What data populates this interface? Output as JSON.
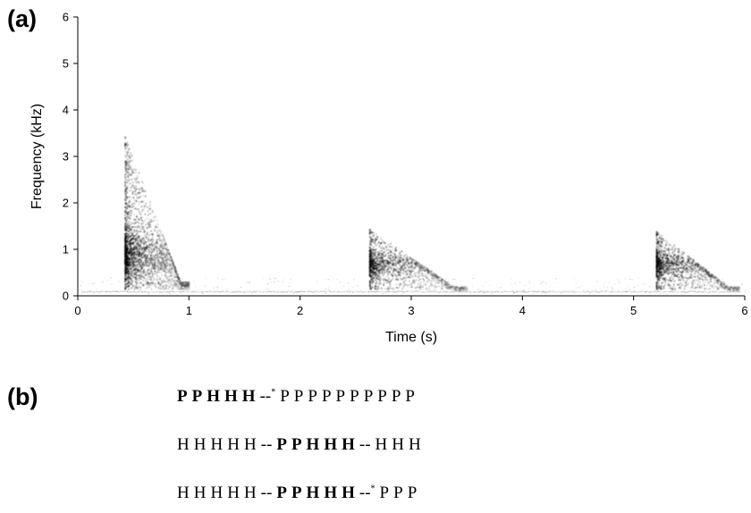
{
  "panel_a_label": "(a)",
  "panel_b_label": "(b)",
  "chart_data": {
    "type": "heatmap",
    "subtype": "spectrogram",
    "xlabel": "Time (s)",
    "ylabel": "Frequency (kHz)",
    "xlim": [
      0,
      6
    ],
    "ylim": [
      0,
      6
    ],
    "xticks": [
      "0",
      "1",
      "2",
      "3",
      "4",
      "5",
      "6"
    ],
    "yticks": [
      "0",
      "1",
      "2",
      "3",
      "4",
      "5",
      "6"
    ],
    "grid": false,
    "colormap": "grayscale",
    "notes_visible": [
      {
        "start_s": 0.42,
        "end_s": 1.0,
        "fmin_khz": 0.15,
        "fmax_khz": 3.45,
        "peak_khz": 0.9
      },
      {
        "start_s": 2.62,
        "end_s": 3.5,
        "fmin_khz": 0.15,
        "fmax_khz": 1.45,
        "peak_khz": 0.7
      },
      {
        "start_s": 5.2,
        "end_s": 5.95,
        "fmin_khz": 0.15,
        "fmax_khz": 1.4,
        "peak_khz": 0.7
      }
    ],
    "baseline_noise_khz": 0.1
  },
  "sequences": [
    {
      "tokens": [
        {
          "text": "P",
          "bold": true
        },
        {
          "text": "P",
          "bold": true
        },
        {
          "text": "H",
          "bold": true
        },
        {
          "text": "H",
          "bold": true
        },
        {
          "text": "H",
          "bold": true
        },
        {
          "text": "--",
          "sep": true,
          "mark": "*"
        },
        {
          "text": "P"
        },
        {
          "text": "P"
        },
        {
          "text": "P"
        },
        {
          "text": "P"
        },
        {
          "text": "P"
        },
        {
          "text": "P"
        },
        {
          "text": "P"
        },
        {
          "text": "P"
        },
        {
          "text": "P"
        },
        {
          "text": "P"
        }
      ]
    },
    {
      "tokens": [
        {
          "text": "H"
        },
        {
          "text": "H"
        },
        {
          "text": "H"
        },
        {
          "text": "H"
        },
        {
          "text": "H"
        },
        {
          "text": "--",
          "sep": true
        },
        {
          "text": "P",
          "bold": true
        },
        {
          "text": "P",
          "bold": true
        },
        {
          "text": "H",
          "bold": true
        },
        {
          "text": "H",
          "bold": true
        },
        {
          "text": "H",
          "bold": true
        },
        {
          "text": "--",
          "sep": true
        },
        {
          "text": "H"
        },
        {
          "text": "H"
        },
        {
          "text": "H"
        }
      ]
    },
    {
      "tokens": [
        {
          "text": "H"
        },
        {
          "text": "H"
        },
        {
          "text": "H"
        },
        {
          "text": "H"
        },
        {
          "text": "H"
        },
        {
          "text": "--",
          "sep": true
        },
        {
          "text": "P",
          "bold": true
        },
        {
          "text": "P",
          "bold": true
        },
        {
          "text": "H",
          "bold": true
        },
        {
          "text": "H",
          "bold": true
        },
        {
          "text": "H",
          "bold": true
        },
        {
          "text": "--",
          "sep": true,
          "mark": "*"
        },
        {
          "text": "P"
        },
        {
          "text": "P"
        },
        {
          "text": "P"
        }
      ]
    }
  ]
}
